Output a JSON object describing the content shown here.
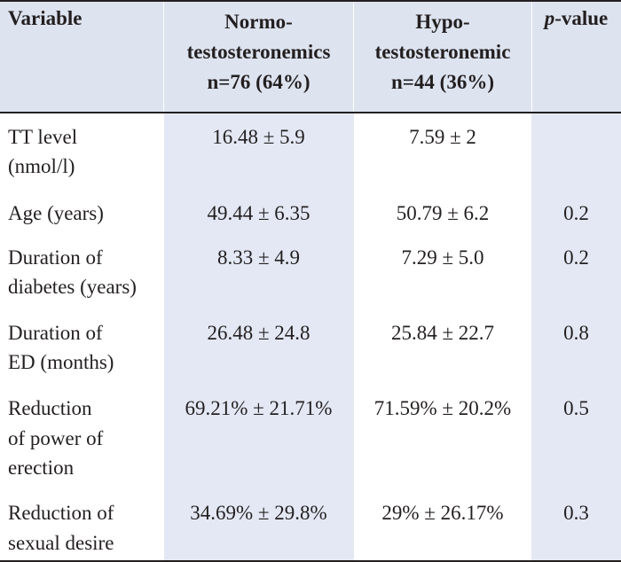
{
  "header": {
    "variable": "Variable",
    "group1_line1": "Normo-",
    "group1_line2": "testosteronemics",
    "group1_line3": "n=76 (64%)",
    "group2_line1": "Hypo-",
    "group2_line2": "testosteronemic",
    "group2_line3": "n=44 (36%)",
    "p_italic": "p",
    "p_rest": "-value"
  },
  "rows": [
    {
      "label": [
        "TT level",
        "(nmol/l)"
      ],
      "normo": "16.48 ± 5.9",
      "hypo": "7.59 ± 2",
      "p": ""
    },
    {
      "label": [
        "Age (years)"
      ],
      "normo": "49.44 ± 6.35",
      "hypo": "50.79 ± 6.2",
      "p": "0.2"
    },
    {
      "label": [
        "Duration of",
        "diabetes (years)"
      ],
      "normo": "8.33 ± 4.9",
      "hypo": "7.29 ± 5.0",
      "p": "0.2"
    },
    {
      "label": [
        "Duration of",
        "ED (months)"
      ],
      "normo": "26.48 ± 24.8",
      "hypo": "25.84 ± 22.7",
      "p": "0.8"
    },
    {
      "label": [
        "Reduction",
        "of power of",
        "erection"
      ],
      "normo": "69.21% ± 21.71%",
      "hypo": "71.59% ± 20.2%",
      "p": "0.5"
    },
    {
      "label": [
        "Reduction of",
        "sexual desire"
      ],
      "normo": "34.69% ± 29.8%",
      "hypo": "29% ± 26.17%",
      "p": "0.3"
    }
  ]
}
